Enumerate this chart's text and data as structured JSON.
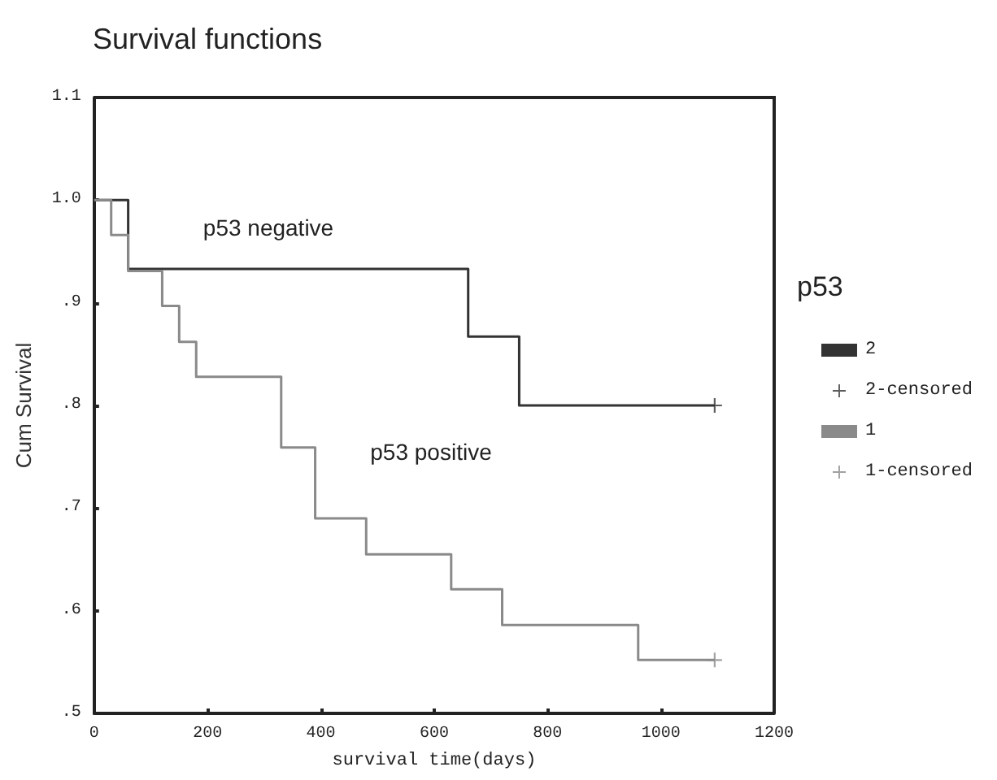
{
  "chart_data": {
    "type": "step",
    "title": "Survival functions",
    "xlabel": "survival time(days)",
    "ylabel": "Cum Survival",
    "legend_title": "p53",
    "series": [
      {
        "name": "2",
        "color": "#333333",
        "x": [
          0,
          60,
          660,
          750,
          1095
        ],
        "values": [
          1.0,
          0.933,
          0.867,
          0.8,
          0.8
        ]
      },
      {
        "name": "2-censored",
        "type": "scatter",
        "marker": "cross",
        "color": "#333333",
        "x": [
          1095
        ],
        "values": [
          0.8
        ]
      },
      {
        "name": "1",
        "color": "#8a8a8a",
        "x": [
          0,
          30,
          60,
          120,
          150,
          180,
          330,
          390,
          480,
          630,
          720,
          960,
          1095
        ],
        "values": [
          1.0,
          0.966,
          0.931,
          0.897,
          0.862,
          0.828,
          0.759,
          0.69,
          0.655,
          0.621,
          0.586,
          0.552,
          0.552
        ]
      },
      {
        "name": "1-censored",
        "type": "scatter",
        "marker": "cross",
        "color": "#8a8a8a",
        "x": [
          1095
        ],
        "values": [
          0.552
        ]
      }
    ],
    "annotations": [
      "p53 negative",
      "p53 positive"
    ],
    "xlim": [
      0,
      1200
    ],
    "xticks": [
      0,
      200,
      400,
      600,
      800,
      1000,
      1200
    ],
    "ylim": [
      0.5,
      1.1
    ],
    "yticks": [
      {
        "value": 0.5,
        "label": ".5"
      },
      {
        "value": 0.6,
        "label": ".6"
      },
      {
        "value": 0.7,
        "label": ".7"
      },
      {
        "value": 0.8,
        "label": ".8"
      },
      {
        "value": 0.9,
        "label": ".9"
      },
      {
        "value": 1.0,
        "label": "1.0"
      },
      {
        "value": 1.1,
        "label": "1.1"
      }
    ],
    "marker": "none",
    "grid": false,
    "legend": "right"
  }
}
